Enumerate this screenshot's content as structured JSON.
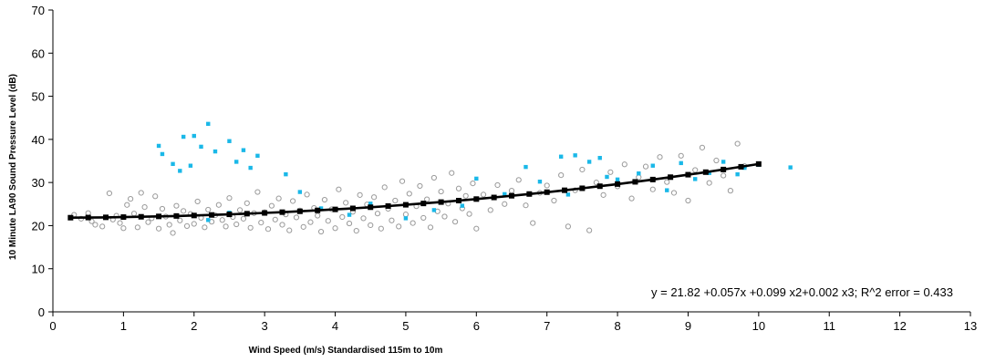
{
  "chart_data": {
    "type": "scatter",
    "xlabel": "Wind Speed (m/s) Standardised 115m to 10m",
    "ylabel": "10 Minute LA90 Sound Pressure Level (dB)",
    "xlim": [
      0,
      13
    ],
    "ylim": [
      0,
      70
    ],
    "x_ticks": [
      0,
      1,
      2,
      3,
      4,
      5,
      6,
      7,
      8,
      9,
      10,
      11,
      12,
      13
    ],
    "y_ticks": [
      0,
      10,
      20,
      30,
      40,
      50,
      60,
      70
    ],
    "grid": false,
    "legend": "none",
    "annotation": "y = 21.82 +0.057x +0.099 x2+0.002 x3; R^2 error = 0.433",
    "colors": {
      "open_markers": "#9a9a9a",
      "cyan_markers": "#1ab8e8",
      "fit_line": "#000000"
    },
    "fit": {
      "coefficients": [
        21.82,
        0.057,
        0.099,
        0.002
      ],
      "x": [
        0.25,
        0.5,
        0.75,
        1.0,
        1.25,
        1.5,
        1.75,
        2.0,
        2.25,
        2.5,
        2.75,
        3.0,
        3.25,
        3.5,
        3.75,
        4.0,
        4.25,
        4.5,
        4.75,
        5.0,
        5.25,
        5.5,
        5.75,
        6.0,
        6.25,
        6.5,
        6.75,
        7.0,
        7.25,
        7.5,
        7.75,
        8.0,
        8.25,
        8.5,
        8.75,
        9.0,
        9.25,
        9.5,
        9.75,
        10.0
      ]
    },
    "series": [
      {
        "marker": "open-circle",
        "points": [
          [
            0.3,
            22.5
          ],
          [
            0.4,
            21.6
          ],
          [
            0.5,
            22.9
          ],
          [
            0.55,
            21.0
          ],
          [
            0.6,
            20.2
          ],
          [
            0.7,
            19.8
          ],
          [
            0.8,
            27.5
          ],
          [
            0.85,
            21.4
          ],
          [
            0.9,
            22.3
          ],
          [
            0.95,
            20.6
          ],
          [
            1.0,
            19.4
          ],
          [
            1.05,
            24.8
          ],
          [
            1.1,
            26.2
          ],
          [
            1.15,
            22.8
          ],
          [
            1.2,
            19.6
          ],
          [
            1.25,
            27.6
          ],
          [
            1.3,
            24.3
          ],
          [
            1.35,
            20.8
          ],
          [
            1.4,
            21.7
          ],
          [
            1.45,
            26.8
          ],
          [
            1.5,
            19.3
          ],
          [
            1.55,
            23.9
          ],
          [
            1.6,
            22.1
          ],
          [
            1.65,
            20.2
          ],
          [
            1.7,
            18.3
          ],
          [
            1.75,
            24.6
          ],
          [
            1.8,
            21.2
          ],
          [
            1.85,
            23.4
          ],
          [
            1.9,
            19.9
          ],
          [
            1.95,
            22.7
          ],
          [
            2.0,
            20.4
          ],
          [
            2.05,
            25.6
          ],
          [
            2.1,
            21.8
          ],
          [
            2.15,
            19.6
          ],
          [
            2.2,
            23.7
          ],
          [
            2.25,
            20.9
          ],
          [
            2.3,
            22.4
          ],
          [
            2.35,
            24.8
          ],
          [
            2.4,
            21.3
          ],
          [
            2.45,
            19.8
          ],
          [
            2.5,
            26.4
          ],
          [
            2.55,
            22.0
          ],
          [
            2.6,
            20.3
          ],
          [
            2.65,
            23.6
          ],
          [
            2.7,
            21.6
          ],
          [
            2.75,
            25.2
          ],
          [
            2.8,
            19.5
          ],
          [
            2.85,
            22.9
          ],
          [
            2.9,
            27.8
          ],
          [
            2.95,
            20.7
          ],
          [
            3.0,
            23.1
          ],
          [
            3.05,
            19.2
          ],
          [
            3.1,
            24.6
          ],
          [
            3.15,
            21.4
          ],
          [
            3.2,
            26.3
          ],
          [
            3.25,
            20.2
          ],
          [
            3.3,
            22.6
          ],
          [
            3.35,
            18.9
          ],
          [
            3.4,
            25.7
          ],
          [
            3.45,
            21.9
          ],
          [
            3.5,
            23.5
          ],
          [
            3.55,
            19.7
          ],
          [
            3.6,
            27.2
          ],
          [
            3.65,
            20.8
          ],
          [
            3.7,
            24.1
          ],
          [
            3.75,
            22.3
          ],
          [
            3.8,
            18.6
          ],
          [
            3.85,
            26.0
          ],
          [
            3.9,
            21.1
          ],
          [
            3.95,
            23.8
          ],
          [
            4.0,
            19.4
          ],
          [
            4.05,
            28.4
          ],
          [
            4.1,
            22.0
          ],
          [
            4.15,
            25.3
          ],
          [
            4.2,
            20.5
          ],
          [
            4.25,
            23.2
          ],
          [
            4.3,
            18.8
          ],
          [
            4.35,
            27.1
          ],
          [
            4.4,
            21.7
          ],
          [
            4.45,
            24.9
          ],
          [
            4.5,
            20.1
          ],
          [
            4.55,
            26.6
          ],
          [
            4.6,
            22.8
          ],
          [
            4.65,
            19.3
          ],
          [
            4.7,
            28.9
          ],
          [
            4.75,
            23.9
          ],
          [
            4.8,
            21.2
          ],
          [
            4.85,
            25.8
          ],
          [
            4.9,
            19.8
          ],
          [
            4.95,
            30.3
          ],
          [
            5.0,
            22.6
          ],
          [
            5.05,
            27.4
          ],
          [
            5.1,
            20.6
          ],
          [
            5.15,
            24.5
          ],
          [
            5.2,
            29.2
          ],
          [
            5.25,
            21.8
          ],
          [
            5.3,
            26.1
          ],
          [
            5.35,
            19.6
          ],
          [
            5.4,
            31.1
          ],
          [
            5.45,
            23.3
          ],
          [
            5.5,
            27.9
          ],
          [
            5.55,
            22.1
          ],
          [
            5.6,
            25.1
          ],
          [
            5.65,
            32.2
          ],
          [
            5.7,
            20.9
          ],
          [
            5.75,
            28.6
          ],
          [
            5.8,
            24.0
          ],
          [
            5.85,
            26.9
          ],
          [
            5.9,
            22.7
          ],
          [
            5.95,
            29.8
          ],
          [
            6.0,
            19.3
          ],
          [
            6.1,
            27.2
          ],
          [
            6.2,
            23.6
          ],
          [
            6.3,
            29.4
          ],
          [
            6.4,
            25.0
          ],
          [
            6.5,
            28.1
          ],
          [
            6.6,
            30.6
          ],
          [
            6.7,
            24.7
          ],
          [
            6.8,
            20.6
          ],
          [
            6.9,
            27.6
          ],
          [
            7.0,
            29.3
          ],
          [
            7.1,
            25.8
          ],
          [
            7.2,
            31.7
          ],
          [
            7.3,
            19.8
          ],
          [
            7.4,
            28.2
          ],
          [
            7.5,
            33.0
          ],
          [
            7.6,
            18.9
          ],
          [
            7.7,
            30.0
          ],
          [
            7.8,
            27.1
          ],
          [
            7.9,
            32.4
          ],
          [
            8.0,
            29.1
          ],
          [
            8.1,
            34.2
          ],
          [
            8.2,
            26.3
          ],
          [
            8.3,
            31.2
          ],
          [
            8.4,
            33.7
          ],
          [
            8.5,
            28.4
          ],
          [
            8.6,
            35.9
          ],
          [
            8.7,
            30.1
          ],
          [
            8.8,
            27.6
          ],
          [
            8.9,
            36.2
          ],
          [
            9.0,
            25.8
          ],
          [
            9.1,
            32.9
          ],
          [
            9.2,
            38.1
          ],
          [
            9.3,
            29.9
          ],
          [
            9.4,
            35.1
          ],
          [
            9.5,
            31.6
          ],
          [
            9.6,
            28.1
          ],
          [
            9.7,
            39.0
          ],
          [
            9.8,
            33.8
          ]
        ]
      },
      {
        "marker": "filled-square",
        "points": [
          [
            1.5,
            38.5
          ],
          [
            1.55,
            36.6
          ],
          [
            1.7,
            34.3
          ],
          [
            1.8,
            32.7
          ],
          [
            1.85,
            40.6
          ],
          [
            1.95,
            33.9
          ],
          [
            2.0,
            40.8
          ],
          [
            2.1,
            38.3
          ],
          [
            2.2,
            43.6
          ],
          [
            2.3,
            37.2
          ],
          [
            2.5,
            39.6
          ],
          [
            2.6,
            34.8
          ],
          [
            2.7,
            37.5
          ],
          [
            2.8,
            33.4
          ],
          [
            2.9,
            36.2
          ],
          [
            3.3,
            31.9
          ],
          [
            3.5,
            27.8
          ],
          [
            2.2,
            21.3
          ],
          [
            2.5,
            23.0
          ],
          [
            3.8,
            24.0
          ],
          [
            4.2,
            22.5
          ],
          [
            4.5,
            25.1
          ],
          [
            5.0,
            21.7
          ],
          [
            5.4,
            23.6
          ],
          [
            5.8,
            24.6
          ],
          [
            6.0,
            30.9
          ],
          [
            6.4,
            27.3
          ],
          [
            6.7,
            33.6
          ],
          [
            6.9,
            30.2
          ],
          [
            7.2,
            36.0
          ],
          [
            7.3,
            27.2
          ],
          [
            7.4,
            36.3
          ],
          [
            7.6,
            34.8
          ],
          [
            7.75,
            35.7
          ],
          [
            7.85,
            31.3
          ],
          [
            8.0,
            30.7
          ],
          [
            8.3,
            32.1
          ],
          [
            8.5,
            33.9
          ],
          [
            8.7,
            28.2
          ],
          [
            8.9,
            34.5
          ],
          [
            9.1,
            30.8
          ],
          [
            9.3,
            32.2
          ],
          [
            9.5,
            34.8
          ],
          [
            9.7,
            31.9
          ],
          [
            9.8,
            33.4
          ],
          [
            10.0,
            34.1
          ],
          [
            10.45,
            33.5
          ]
        ]
      }
    ]
  }
}
